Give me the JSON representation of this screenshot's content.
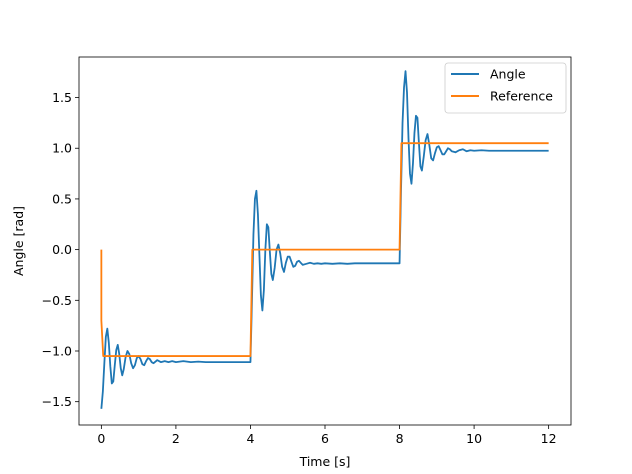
{
  "chart_data": {
    "type": "line",
    "title": "",
    "xlabel": "Time [s]",
    "ylabel": "Angle [rad]",
    "xlim": [
      -0.6,
      12.6
    ],
    "ylim": [
      -1.73,
      1.9
    ],
    "grid": false,
    "legend_position": "top-right",
    "x_ticks": [
      0,
      2,
      4,
      6,
      8,
      10,
      12
    ],
    "x_tick_labels": [
      "0",
      "2",
      "4",
      "6",
      "8",
      "10",
      "12"
    ],
    "y_ticks": [
      -1.5,
      -1.0,
      -0.5,
      0.0,
      0.5,
      1.0,
      1.5
    ],
    "y_tick_labels": [
      "−1.5",
      "−1.0",
      "−0.5",
      "0.0",
      "0.5",
      "1.0",
      "1.5"
    ],
    "series": [
      {
        "name": "Angle",
        "color": "#1f77b4",
        "x": [
          0.0,
          0.04,
          0.08,
          0.12,
          0.16,
          0.2,
          0.24,
          0.28,
          0.32,
          0.36,
          0.4,
          0.44,
          0.48,
          0.52,
          0.56,
          0.6,
          0.65,
          0.7,
          0.75,
          0.8,
          0.85,
          0.9,
          0.95,
          1.0,
          1.05,
          1.1,
          1.15,
          1.2,
          1.25,
          1.3,
          1.35,
          1.4,
          1.5,
          1.6,
          1.7,
          1.8,
          1.9,
          2.0,
          2.2,
          2.4,
          2.6,
          2.8,
          3.0,
          3.4,
          3.8,
          4.0,
          4.04,
          4.08,
          4.12,
          4.16,
          4.2,
          4.24,
          4.28,
          4.32,
          4.36,
          4.4,
          4.44,
          4.48,
          4.52,
          4.56,
          4.6,
          4.65,
          4.7,
          4.75,
          4.8,
          4.85,
          4.9,
          4.95,
          5.0,
          5.05,
          5.1,
          5.15,
          5.2,
          5.25,
          5.3,
          5.35,
          5.4,
          5.5,
          5.6,
          5.7,
          5.8,
          5.9,
          6.0,
          6.2,
          6.4,
          6.6,
          6.8,
          7.0,
          7.4,
          7.8,
          8.0,
          8.04,
          8.08,
          8.12,
          8.16,
          8.2,
          8.24,
          8.28,
          8.32,
          8.36,
          8.4,
          8.44,
          8.48,
          8.52,
          8.56,
          8.6,
          8.65,
          8.7,
          8.75,
          8.8,
          8.85,
          8.9,
          8.95,
          9.0,
          9.05,
          9.1,
          9.15,
          9.2,
          9.25,
          9.3,
          9.35,
          9.4,
          9.5,
          9.6,
          9.7,
          9.8,
          9.9,
          10.0,
          10.2,
          10.4,
          10.6,
          10.8,
          11.0,
          11.4,
          11.8,
          12.0
        ],
        "y": [
          -1.57,
          -1.4,
          -1.12,
          -0.86,
          -0.78,
          -0.92,
          -1.15,
          -1.32,
          -1.3,
          -1.14,
          -0.99,
          -0.94,
          -1.03,
          -1.17,
          -1.24,
          -1.18,
          -1.06,
          -1.0,
          -1.03,
          -1.12,
          -1.17,
          -1.14,
          -1.07,
          -1.05,
          -1.08,
          -1.13,
          -1.14,
          -1.1,
          -1.07,
          -1.08,
          -1.11,
          -1.12,
          -1.09,
          -1.11,
          -1.1,
          -1.11,
          -1.1,
          -1.11,
          -1.1,
          -1.11,
          -1.105,
          -1.11,
          -1.11,
          -1.11,
          -1.11,
          -1.11,
          -0.5,
          0.15,
          0.5,
          0.58,
          0.35,
          -0.05,
          -0.45,
          -0.6,
          -0.4,
          0.0,
          0.25,
          0.22,
          -0.02,
          -0.24,
          -0.3,
          -0.18,
          0.0,
          0.05,
          -0.04,
          -0.17,
          -0.22,
          -0.13,
          -0.07,
          -0.07,
          -0.12,
          -0.17,
          -0.16,
          -0.12,
          -0.11,
          -0.13,
          -0.15,
          -0.14,
          -0.13,
          -0.14,
          -0.135,
          -0.14,
          -0.135,
          -0.14,
          -0.135,
          -0.14,
          -0.135,
          -0.135,
          -0.135,
          -0.135,
          -0.135,
          0.6,
          1.25,
          1.6,
          1.76,
          1.55,
          1.1,
          0.75,
          0.65,
          0.85,
          1.15,
          1.32,
          1.3,
          1.05,
          0.82,
          0.78,
          0.92,
          1.08,
          1.14,
          1.03,
          0.9,
          0.88,
          0.95,
          1.01,
          1.02,
          0.98,
          0.94,
          0.94,
          0.97,
          1.0,
          0.99,
          0.97,
          0.96,
          0.98,
          0.99,
          0.97,
          0.98,
          0.975,
          0.98,
          0.975,
          0.975,
          0.975,
          0.975,
          0.975,
          0.975,
          0.975
        ]
      },
      {
        "name": "Reference",
        "color": "#ff7f0e",
        "x": [
          0.0,
          0.0,
          0.05,
          4.0,
          4.0,
          4.05,
          8.0,
          8.0,
          8.05,
          12.0
        ],
        "y": [
          0.0,
          -0.7,
          -1.05,
          -1.05,
          -1.05,
          0.0,
          0.0,
          0.0,
          1.05,
          1.05
        ]
      }
    ]
  }
}
